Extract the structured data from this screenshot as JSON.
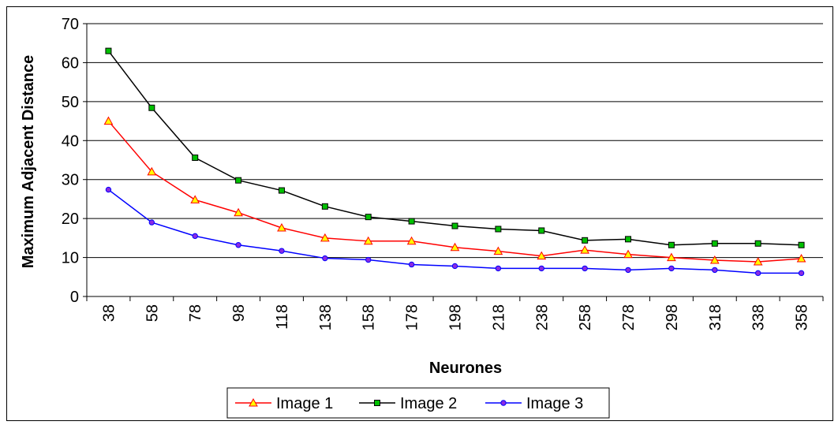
{
  "chart_data": {
    "type": "line",
    "xlabel": "Neurones",
    "ylabel": "Maximum Adjacent Distance",
    "ylim": [
      0,
      70
    ],
    "yticks": [
      "0",
      "10",
      "20",
      "30",
      "40",
      "50",
      "60",
      "70"
    ],
    "grid": true,
    "legend_position": "bottom",
    "categories": [
      "38",
      "58",
      "78",
      "98",
      "118",
      "138",
      "158",
      "178",
      "198",
      "218",
      "238",
      "258",
      "278",
      "298",
      "318",
      "338",
      "358"
    ],
    "series": [
      {
        "name": "Image 1",
        "color": "#ff0000",
        "marker": "triangle",
        "marker_fill": "#ffff00",
        "values": [
          45,
          32,
          24.8,
          21.5,
          17.6,
          15,
          14.2,
          14.2,
          12.6,
          11.6,
          10.4,
          11.9,
          10.8,
          10,
          9.3,
          8.9,
          9.7
        ]
      },
      {
        "name": "Image 2",
        "color": "#000000",
        "marker": "square",
        "marker_fill": "#00c000",
        "values": [
          63,
          48.4,
          35.6,
          29.8,
          27.2,
          23.1,
          20.4,
          19.3,
          18.1,
          17.3,
          16.9,
          14.4,
          14.7,
          13.2,
          13.6,
          13.6,
          13.2
        ]
      },
      {
        "name": "Image 3",
        "color": "#0000ff",
        "marker": "circle",
        "marker_fill": "#8a2be2",
        "values": [
          27.4,
          19,
          15.5,
          13.2,
          11.7,
          9.8,
          9.4,
          8.2,
          7.8,
          7.2,
          7.2,
          7.2,
          6.8,
          7.2,
          6.8,
          6,
          6
        ]
      }
    ]
  }
}
